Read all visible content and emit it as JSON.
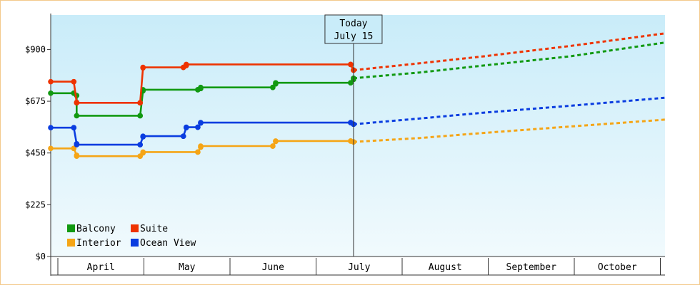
{
  "chart_data": {
    "type": "line",
    "title": "",
    "xlabel": "",
    "ylabel": "",
    "ylim": [
      0,
      1050
    ],
    "y_ticks": [
      {
        "value": 0,
        "label": "$0"
      },
      {
        "value": 225,
        "label": "$225"
      },
      {
        "value": 450,
        "label": "$450"
      },
      {
        "value": 675,
        "label": "$675"
      },
      {
        "value": 900,
        "label": "$900"
      }
    ],
    "months": [
      "April",
      "May",
      "June",
      "July",
      "August",
      "September",
      "October"
    ],
    "x_range_days": [
      0,
      213
    ],
    "today": {
      "line1": "Today",
      "line2": "July 15",
      "day": 105
    },
    "legend": {
      "placement": "bottom-left"
    },
    "series": [
      {
        "name": "Balcony",
        "color": "#119911",
        "points": [
          [
            0,
            710
          ],
          [
            8,
            710
          ],
          [
            8,
            710
          ],
          [
            9,
            700
          ],
          [
            9,
            612
          ],
          [
            31,
            612
          ],
          [
            31,
            612
          ],
          [
            32,
            720
          ],
          [
            32,
            725
          ],
          [
            51,
            725
          ],
          [
            51,
            725
          ],
          [
            52,
            730
          ],
          [
            52,
            735
          ],
          [
            77,
            735
          ],
          [
            77,
            735
          ],
          [
            78,
            750
          ],
          [
            78,
            755
          ],
          [
            104,
            755
          ],
          [
            104,
            755
          ],
          [
            105,
            770
          ],
          [
            105,
            775
          ]
        ],
        "projection": [
          [
            105,
            775
          ],
          [
            128,
            800
          ],
          [
            150,
            830
          ],
          [
            180,
            870
          ],
          [
            213,
            930
          ]
        ]
      },
      {
        "name": "Suite",
        "color": "#ee3300",
        "points": [
          [
            0,
            760
          ],
          [
            8,
            760
          ],
          [
            8,
            760
          ],
          [
            9,
            670
          ],
          [
            9,
            668
          ],
          [
            31,
            668
          ],
          [
            31,
            668
          ],
          [
            32,
            820
          ],
          [
            32,
            822
          ],
          [
            46,
            822
          ],
          [
            46,
            822
          ],
          [
            47,
            830
          ],
          [
            47,
            835
          ],
          [
            104,
            835
          ],
          [
            104,
            835
          ],
          [
            105,
            810
          ],
          [
            105,
            810
          ]
        ],
        "projection": [
          [
            105,
            810
          ],
          [
            128,
            840
          ],
          [
            150,
            870
          ],
          [
            180,
            915
          ],
          [
            213,
            970
          ]
        ]
      },
      {
        "name": "Interior",
        "color": "#f5a516",
        "points": [
          [
            0,
            470
          ],
          [
            8,
            470
          ],
          [
            8,
            470
          ],
          [
            9,
            440
          ],
          [
            9,
            436
          ],
          [
            31,
            436
          ],
          [
            31,
            436
          ],
          [
            32,
            450
          ],
          [
            32,
            454
          ],
          [
            51,
            454
          ],
          [
            51,
            454
          ],
          [
            52,
            475
          ],
          [
            52,
            480
          ],
          [
            77,
            480
          ],
          [
            77,
            480
          ],
          [
            78,
            500
          ],
          [
            78,
            502
          ],
          [
            104,
            502
          ],
          [
            104,
            502
          ],
          [
            105,
            498
          ],
          [
            105,
            498
          ]
        ],
        "projection": [
          [
            105,
            498
          ],
          [
            128,
            515
          ],
          [
            150,
            537
          ],
          [
            180,
            565
          ],
          [
            213,
            595
          ]
        ]
      },
      {
        "name": "Ocean View",
        "color": "#0a3de0",
        "points": [
          [
            0,
            560
          ],
          [
            8,
            560
          ],
          [
            8,
            560
          ],
          [
            9,
            490
          ],
          [
            9,
            486
          ],
          [
            31,
            486
          ],
          [
            31,
            486
          ],
          [
            32,
            520
          ],
          [
            32,
            523
          ],
          [
            46,
            523
          ],
          [
            46,
            523
          ],
          [
            47,
            560
          ],
          [
            47,
            562
          ],
          [
            51,
            562
          ],
          [
            51,
            562
          ],
          [
            52,
            580
          ],
          [
            52,
            582
          ],
          [
            104,
            582
          ],
          [
            104,
            582
          ],
          [
            105,
            575
          ],
          [
            105,
            575
          ]
        ],
        "projection": [
          [
            105,
            575
          ],
          [
            128,
            600
          ],
          [
            150,
            625
          ],
          [
            180,
            655
          ],
          [
            213,
            690
          ]
        ]
      }
    ]
  }
}
